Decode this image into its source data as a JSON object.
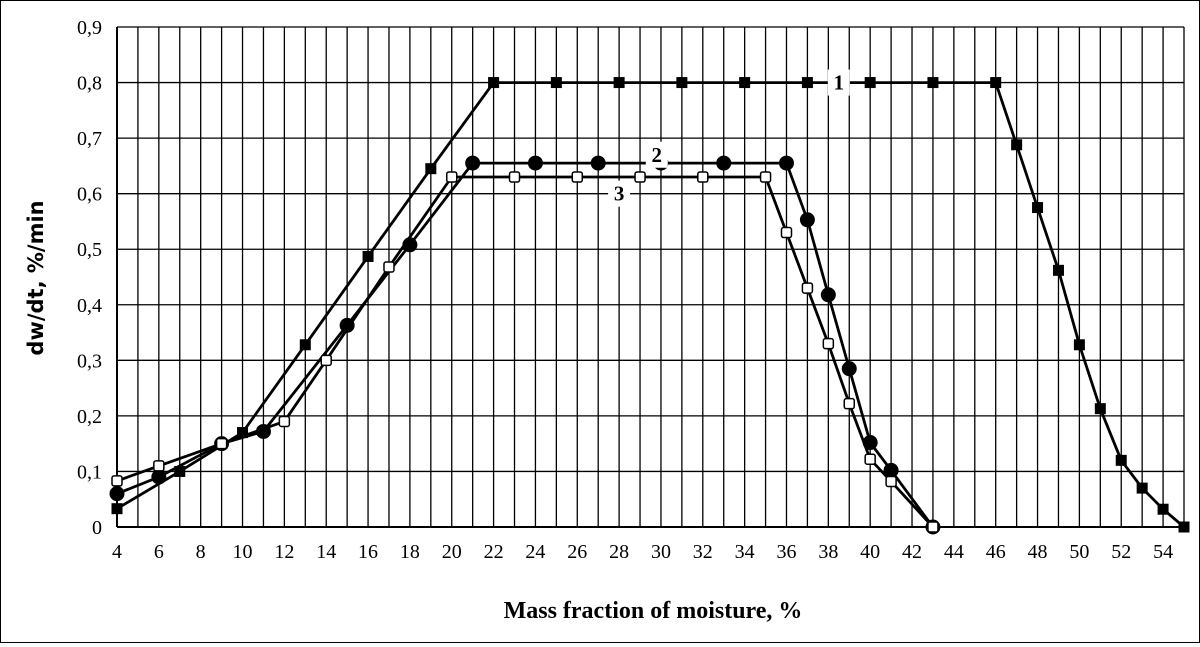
{
  "chart_data": {
    "type": "line",
    "title": "",
    "xlabel": "Mass fraction of moisture, %",
    "ylabel": "dw/dt, %/min",
    "xlim": [
      4,
      55
    ],
    "ylim": [
      0,
      0.9
    ],
    "grid": true,
    "x_ticks": [
      "4",
      "6",
      "8",
      "10",
      "12",
      "14",
      "16",
      "18",
      "20",
      "22",
      "24",
      "26",
      "28",
      "30",
      "32",
      "34",
      "36",
      "38",
      "40",
      "42",
      "44",
      "46",
      "48",
      "50",
      "52",
      "54"
    ],
    "y_ticks": [
      "0",
      "0,1",
      "0,2",
      "0,3",
      "0,4",
      "0,5",
      "0,6",
      "0,7",
      "0,8",
      "0,9"
    ],
    "series": [
      {
        "name": "1",
        "marker": "square-filled",
        "points": [
          [
            4,
            0.033
          ],
          [
            7,
            0.1
          ],
          [
            10,
            0.17
          ],
          [
            13,
            0.328
          ],
          [
            16,
            0.487
          ],
          [
            19,
            0.645
          ],
          [
            22,
            0.8
          ],
          [
            25,
            0.8
          ],
          [
            28,
            0.8
          ],
          [
            31,
            0.8
          ],
          [
            34,
            0.8
          ],
          [
            37,
            0.8
          ],
          [
            40,
            0.8
          ],
          [
            43,
            0.8
          ],
          [
            46,
            0.8
          ],
          [
            47,
            0.688
          ],
          [
            48,
            0.575
          ],
          [
            49,
            0.462
          ],
          [
            50,
            0.328
          ],
          [
            51,
            0.213
          ],
          [
            52,
            0.12
          ],
          [
            53,
            0.07
          ],
          [
            54,
            0.032
          ],
          [
            55,
            0.0
          ]
        ]
      },
      {
        "name": "2",
        "marker": "circle-filled",
        "points": [
          [
            4,
            0.06
          ],
          [
            6,
            0.09
          ],
          [
            9,
            0.15
          ],
          [
            11,
            0.172
          ],
          [
            15,
            0.363
          ],
          [
            18,
            0.508
          ],
          [
            21,
            0.655
          ],
          [
            24,
            0.655
          ],
          [
            27,
            0.655
          ],
          [
            30,
            0.655
          ],
          [
            33,
            0.655
          ],
          [
            36,
            0.655
          ],
          [
            37,
            0.553
          ],
          [
            38,
            0.418
          ],
          [
            39,
            0.285
          ],
          [
            40,
            0.152
          ],
          [
            41,
            0.102
          ],
          [
            43,
            0.0
          ]
        ]
      },
      {
        "name": "3",
        "marker": "square-open",
        "points": [
          [
            4,
            0.083
          ],
          [
            6,
            0.11
          ],
          [
            9,
            0.15
          ],
          [
            12,
            0.19
          ],
          [
            14,
            0.3
          ],
          [
            17,
            0.468
          ],
          [
            20,
            0.63
          ],
          [
            23,
            0.63
          ],
          [
            26,
            0.63
          ],
          [
            29,
            0.63
          ],
          [
            32,
            0.63
          ],
          [
            35,
            0.63
          ],
          [
            36,
            0.53
          ],
          [
            37,
            0.43
          ],
          [
            38,
            0.33
          ],
          [
            39,
            0.222
          ],
          [
            40,
            0.122
          ],
          [
            41,
            0.082
          ],
          [
            43,
            0.0
          ]
        ]
      }
    ]
  }
}
